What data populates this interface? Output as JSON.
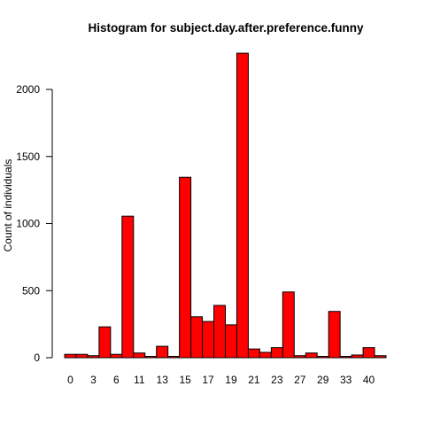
{
  "chart_data": {
    "type": "bar",
    "title": "Histogram for subject.day.after.preference.funny",
    "xlabel": "",
    "ylabel": "Count of individuals",
    "ylim": [
      0,
      2300
    ],
    "yticks": [
      0,
      500,
      1000,
      1500,
      2000
    ],
    "bar_color": "#ff0000",
    "x_tick_labels": [
      "0",
      "3",
      "6",
      "11",
      "13",
      "15",
      "17",
      "19",
      "21",
      "23",
      "27",
      "29",
      "33",
      "40"
    ],
    "x_tick_bar_index": [
      0,
      2,
      4,
      6,
      8,
      10,
      12,
      14,
      16,
      18,
      20,
      22,
      24,
      26
    ],
    "values": [
      25,
      25,
      15,
      230,
      25,
      1055,
      35,
      10,
      85,
      10,
      1345,
      305,
      270,
      390,
      245,
      2270,
      65,
      40,
      75,
      490,
      15,
      35,
      10,
      345,
      10,
      20,
      75,
      15
    ]
  }
}
